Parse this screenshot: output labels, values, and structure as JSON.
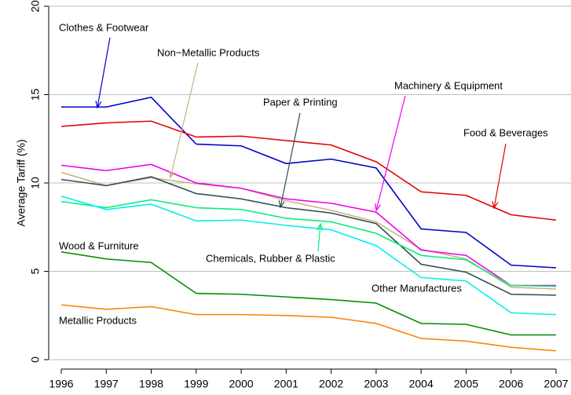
{
  "chart_data": {
    "type": "line",
    "y_label": "Average Tariff (%)",
    "x": [
      1996,
      1997,
      1998,
      1999,
      2000,
      2001,
      2002,
      2003,
      2004,
      2005,
      2006,
      2007
    ],
    "xlim": [
      1996,
      2007
    ],
    "xticks": [
      1996,
      1997,
      1998,
      1999,
      2000,
      2001,
      2002,
      2003,
      2004,
      2005,
      2006,
      2007
    ],
    "ylim": [
      0,
      20
    ],
    "yticks": [
      0,
      5,
      10,
      15,
      20
    ],
    "grid": true,
    "series": [
      {
        "name": "Clothes & Footwear",
        "color": "#0000cd",
        "values": [
          14.3,
          14.3,
          14.85,
          12.2,
          12.1,
          11.1,
          11.35,
          10.85,
          7.4,
          7.2,
          5.35,
          5.2
        ]
      },
      {
        "name": "Non−Metallic Products",
        "color": "#c8b47e",
        "values": [
          10.6,
          9.85,
          10.3,
          9.95,
          9.7,
          9.0,
          8.45,
          7.8,
          6.25,
          5.7,
          4.1,
          4.0
        ]
      },
      {
        "name": "Paper & Printing",
        "color": "#2f4f4f",
        "values": [
          10.2,
          9.85,
          10.35,
          9.4,
          9.1,
          8.6,
          8.3,
          7.7,
          5.4,
          4.95,
          3.7,
          3.65
        ]
      },
      {
        "name": "Machinery & Equipment",
        "color": "#ee00ee",
        "values": [
          11.0,
          10.7,
          11.05,
          10.0,
          9.7,
          9.1,
          8.85,
          8.35,
          6.2,
          5.9,
          4.2,
          4.2
        ]
      },
      {
        "name": "Food & Beverages",
        "color": "#e00000",
        "values": [
          13.2,
          13.4,
          13.5,
          12.6,
          12.65,
          12.4,
          12.15,
          11.2,
          9.5,
          9.3,
          8.2,
          7.9
        ]
      },
      {
        "name": "Chemicals, Rubber & Plastic",
        "color": "#00ee76",
        "values": [
          8.95,
          8.6,
          9.05,
          8.6,
          8.5,
          8.0,
          7.8,
          7.15,
          5.9,
          5.65,
          4.2,
          4.15
        ]
      },
      {
        "name": "Other Manufactures",
        "color": "#00eeee",
        "values": [
          9.25,
          8.5,
          8.8,
          7.85,
          7.9,
          7.6,
          7.35,
          6.45,
          4.65,
          4.45,
          2.65,
          2.55
        ]
      },
      {
        "name": "Wood & Furniture",
        "color": "#008b00",
        "values": [
          6.1,
          5.7,
          5.5,
          3.75,
          3.7,
          3.55,
          3.4,
          3.2,
          2.05,
          2.0,
          1.4,
          1.4
        ]
      },
      {
        "name": "Metallic Products",
        "color": "#ff7f00",
        "values": [
          3.1,
          2.85,
          3.0,
          2.55,
          2.55,
          2.5,
          2.4,
          2.05,
          1.2,
          1.05,
          0.7,
          0.5
        ]
      }
    ]
  }
}
